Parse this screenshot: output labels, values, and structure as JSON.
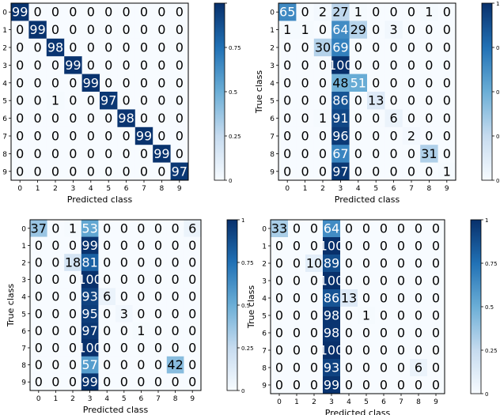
{
  "chart_data": [
    {
      "type": "heatmap",
      "title": "",
      "xlabel": "Predicted class",
      "ylabel": "True class",
      "x_categories": [
        "0",
        "1",
        "2",
        "3",
        "4",
        "5",
        "6",
        "7",
        "8",
        "9"
      ],
      "y_categories": [
        "0",
        "1",
        "2",
        "3",
        "4",
        "5",
        "6",
        "7",
        "8",
        "9"
      ],
      "values": [
        [
          99,
          0,
          0,
          0,
          0,
          0,
          0,
          0,
          0,
          0
        ],
        [
          0,
          99,
          0,
          0,
          0,
          0,
          0,
          0,
          0,
          0
        ],
        [
          0,
          0,
          98,
          0,
          0,
          0,
          0,
          0,
          0,
          0
        ],
        [
          0,
          0,
          0,
          99,
          0,
          0,
          0,
          0,
          0,
          0
        ],
        [
          0,
          0,
          0,
          0,
          99,
          0,
          0,
          0,
          0,
          0
        ],
        [
          0,
          0,
          1,
          0,
          0,
          97,
          0,
          0,
          0,
          0
        ],
        [
          0,
          0,
          0,
          0,
          0,
          0,
          98,
          0,
          0,
          0
        ],
        [
          0,
          0,
          0,
          0,
          0,
          0,
          0,
          99,
          0,
          0
        ],
        [
          0,
          0,
          0,
          0,
          0,
          0,
          0,
          0,
          99,
          0
        ],
        [
          0,
          0,
          0,
          0,
          0,
          0,
          0,
          0,
          0,
          97
        ]
      ],
      "colorbar": {
        "min": 0,
        "max": 1,
        "ticks": [
          "0",
          "0.25",
          "0.5",
          "0.75",
          ""
        ]
      },
      "cmap": [
        "#f7fbff",
        "#c6dbef",
        "#6baed6",
        "#2171b5",
        "#08306b"
      ]
    },
    {
      "type": "heatmap",
      "title": "",
      "xlabel": "Predicted class",
      "ylabel": "True class",
      "x_categories": [
        "0",
        "1",
        "2",
        "3",
        "4",
        "5",
        "6",
        "7",
        "8",
        "9"
      ],
      "y_categories": [
        "0",
        "1",
        "2",
        "3",
        "4",
        "5",
        "6",
        "7",
        "8",
        "9"
      ],
      "values": [
        [
          65,
          0,
          2,
          27,
          1,
          0,
          0,
          0,
          1,
          0
        ],
        [
          1,
          1,
          0,
          64,
          29,
          0,
          3,
          0,
          0,
          0
        ],
        [
          0,
          0,
          30,
          69,
          0,
          0,
          0,
          0,
          0,
          0
        ],
        [
          0,
          0,
          0,
          100,
          0,
          0,
          0,
          0,
          0,
          0
        ],
        [
          0,
          0,
          0,
          48,
          51,
          0,
          0,
          0,
          0,
          0
        ],
        [
          0,
          0,
          0,
          86,
          0,
          13,
          0,
          0,
          0,
          0
        ],
        [
          0,
          0,
          1,
          91,
          0,
          0,
          6,
          0,
          0,
          0
        ],
        [
          0,
          0,
          0,
          96,
          0,
          0,
          0,
          2,
          0,
          0
        ],
        [
          0,
          0,
          0,
          67,
          0,
          0,
          0,
          0,
          31,
          0
        ],
        [
          0,
          0,
          0,
          97,
          0,
          0,
          0,
          0,
          0,
          1
        ]
      ],
      "colorbar": {
        "min": 0,
        "max": 1,
        "ticks": [
          "0",
          "0.25",
          "0.5",
          "0.75",
          "1"
        ]
      },
      "cmap": [
        "#f7fbff",
        "#c6dbef",
        "#6baed6",
        "#2171b5",
        "#08306b"
      ]
    },
    {
      "type": "heatmap",
      "title": "",
      "xlabel": "Predicted class",
      "ylabel": "True class",
      "x_categories": [
        "0",
        "1",
        "2",
        "3",
        "4",
        "5",
        "6",
        "7",
        "8",
        "9"
      ],
      "y_categories": [
        "0",
        "1",
        "2",
        "3",
        "4",
        "5",
        "6",
        "7",
        "8",
        "9"
      ],
      "values": [
        [
          37,
          0,
          1,
          53,
          0,
          0,
          0,
          0,
          0,
          6
        ],
        [
          0,
          0,
          0,
          99,
          0,
          0,
          0,
          0,
          0,
          0
        ],
        [
          0,
          0,
          18,
          81,
          0,
          0,
          0,
          0,
          0,
          0
        ],
        [
          0,
          0,
          0,
          100,
          0,
          0,
          0,
          0,
          0,
          0
        ],
        [
          0,
          0,
          0,
          93,
          6,
          0,
          0,
          0,
          0,
          0
        ],
        [
          0,
          0,
          0,
          95,
          0,
          3,
          0,
          0,
          0,
          0
        ],
        [
          0,
          0,
          0,
          97,
          0,
          0,
          1,
          0,
          0,
          0
        ],
        [
          0,
          0,
          0,
          100,
          0,
          0,
          0,
          0,
          0,
          0
        ],
        [
          0,
          0,
          0,
          57,
          0,
          0,
          0,
          0,
          42,
          0
        ],
        [
          0,
          0,
          0,
          99,
          0,
          0,
          0,
          0,
          0,
          0
        ]
      ],
      "colorbar": {
        "min": 0,
        "max": 1,
        "ticks": [
          "0",
          "0.25",
          "0.5",
          "0.75",
          "1"
        ]
      },
      "cmap": [
        "#f7fbff",
        "#c6dbef",
        "#6baed6",
        "#2171b5",
        "#08306b"
      ]
    },
    {
      "type": "heatmap",
      "title": "",
      "xlabel": "Predicted class",
      "ylabel": "True class",
      "x_categories": [
        "0",
        "1",
        "2",
        "3",
        "4",
        "5",
        "6",
        "7",
        "8",
        "9"
      ],
      "y_categories": [
        "0",
        "1",
        "2",
        "3",
        "4",
        "5",
        "6",
        "7",
        "8",
        "9"
      ],
      "values": [
        [
          33,
          0,
          0,
          64,
          0,
          0,
          0,
          0,
          0,
          0
        ],
        [
          0,
          0,
          0,
          100,
          0,
          0,
          0,
          0,
          0,
          0
        ],
        [
          0,
          0,
          10,
          89,
          0,
          0,
          0,
          0,
          0,
          0
        ],
        [
          0,
          0,
          0,
          100,
          0,
          0,
          0,
          0,
          0,
          0
        ],
        [
          0,
          0,
          0,
          86,
          13,
          0,
          0,
          0,
          0,
          0
        ],
        [
          0,
          0,
          0,
          98,
          0,
          1,
          0,
          0,
          0,
          0
        ],
        [
          0,
          0,
          0,
          98,
          0,
          0,
          0,
          0,
          0,
          0
        ],
        [
          0,
          0,
          0,
          100,
          0,
          0,
          0,
          0,
          0,
          0
        ],
        [
          0,
          0,
          0,
          93,
          0,
          0,
          0,
          0,
          6,
          0
        ],
        [
          0,
          0,
          0,
          99,
          0,
          0,
          0,
          0,
          0,
          0
        ]
      ],
      "colorbar": {
        "min": 0,
        "max": 1,
        "ticks": [
          "0",
          "0.25",
          "0.5",
          "0.75",
          "1"
        ]
      },
      "cmap": [
        "#f7fbff",
        "#c6dbef",
        "#6baed6",
        "#2171b5",
        "#08306b"
      ]
    }
  ]
}
